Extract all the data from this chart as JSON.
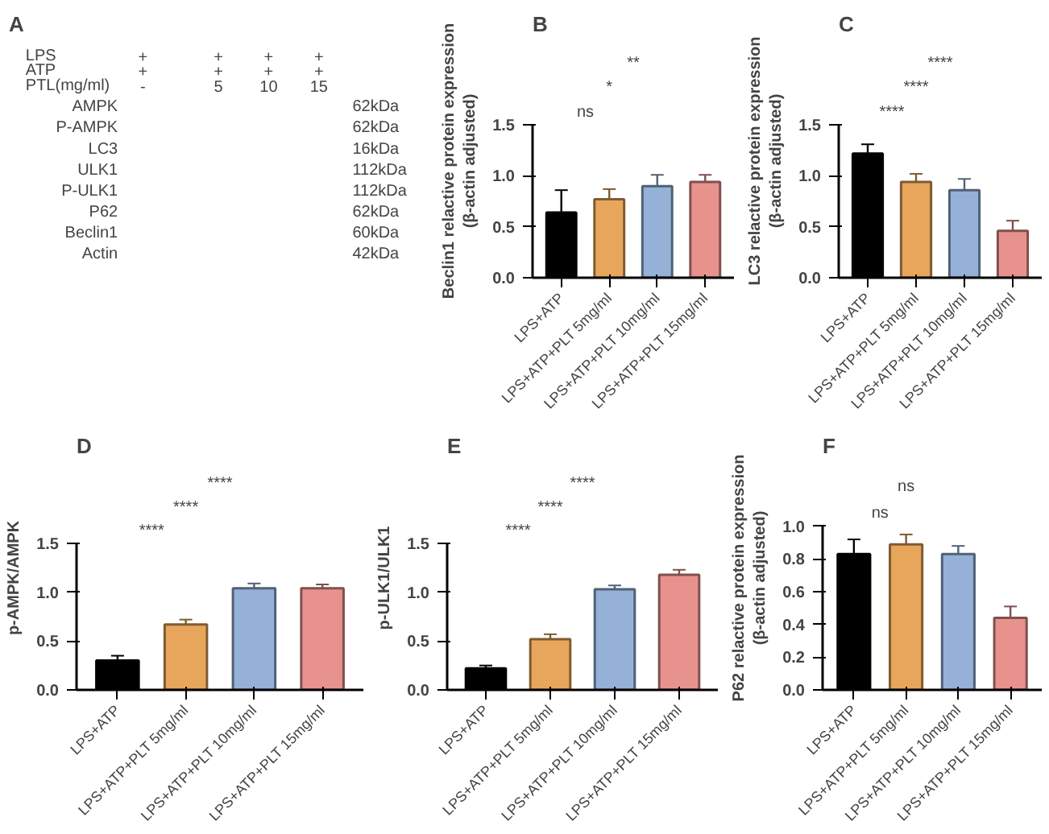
{
  "chart_data": [
    {
      "type": "other",
      "title": "A",
      "annotations": [
        "LPS",
        "+",
        "+",
        "+",
        "+",
        "ATP",
        "+",
        "+",
        "+",
        "+",
        "PTL(mg/ml)",
        "-",
        "5",
        "10",
        "15",
        "AMPK",
        "62kDa",
        "P-AMPK",
        "62kDa",
        "LC3",
        "16kDa",
        "ULK1",
        "112kDa",
        "P-ULK1",
        "112kDa",
        "P62",
        "62kDa",
        "Beclin1",
        "60kDa",
        "Actin",
        "42kDa"
      ]
    },
    {
      "type": "bar",
      "title": "B",
      "ylabel": "Beclin1 relactive protein expression\n(β-actin adjusted)",
      "categories": [
        "LPS+ATP",
        "LPS+ATP+PLT 5mg/ml",
        "LPS+ATP+PLT 10mg/ml",
        "LPS+ATP+PLT 15mg/ml"
      ],
      "values": [
        0.64,
        0.77,
        0.9,
        0.94
      ],
      "errors": [
        0.22,
        0.1,
        0.11,
        0.07
      ],
      "colors": [
        "#000000",
        "#e8a65c",
        "#95b1d8",
        "#e8928e"
      ],
      "ylim": [
        0,
        1.5
      ],
      "yticks": [
        {
          "value": 0,
          "label": "0.0"
        },
        {
          "value": 0.5,
          "label": "0.5"
        },
        {
          "value": 1,
          "label": "1.0"
        },
        {
          "value": 1.5,
          "label": "1.5"
        }
      ],
      "annotations": [
        "ns",
        "*",
        "**"
      ]
    },
    {
      "type": "bar",
      "title": "C",
      "ylabel": "LC3 relactive protein expression\n(β-actin adjusted)",
      "categories": [
        "LPS+ATP",
        "LPS+ATP+PLT 5mg/ml",
        "LPS+ATP+PLT 10mg/ml",
        "LPS+ATP+PLT 15mg/ml"
      ],
      "values": [
        1.22,
        0.94,
        0.86,
        0.46
      ],
      "errors": [
        0.09,
        0.08,
        0.11,
        0.1
      ],
      "colors": [
        "#000000",
        "#e8a65c",
        "#95b1d8",
        "#e8928e"
      ],
      "ylim": [
        0,
        1.5
      ],
      "yticks": [
        {
          "value": 0,
          "label": "0.0"
        },
        {
          "value": 0.5,
          "label": "0.5"
        },
        {
          "value": 1,
          "label": "1.0"
        },
        {
          "value": 1.5,
          "label": "1.5"
        }
      ],
      "annotations": [
        "****",
        "****",
        "****"
      ]
    },
    {
      "type": "bar",
      "title": "D",
      "ylabel": "p-AMPK/AMPK",
      "categories": [
        "LPS+ATP",
        "LPS+ATP+PLT 5mg/ml",
        "LPS+ATP+PLT 10mg/ml",
        "LPS+ATP+PLT 15mg/ml"
      ],
      "values": [
        0.3,
        0.67,
        1.04,
        1.04
      ],
      "errors": [
        0.05,
        0.05,
        0.05,
        0.04
      ],
      "colors": [
        "#000000",
        "#e8a65c",
        "#95b1d8",
        "#e8928e"
      ],
      "ylim": [
        0,
        1.5
      ],
      "yticks": [
        {
          "value": 0,
          "label": "0.0"
        },
        {
          "value": 0.5,
          "label": "0.5"
        },
        {
          "value": 1,
          "label": "1.0"
        },
        {
          "value": 1.5,
          "label": "1.5"
        }
      ],
      "annotations": [
        "****",
        "****",
        "****"
      ]
    },
    {
      "type": "bar",
      "title": "E",
      "ylabel": "p-ULK1/ULK1",
      "categories": [
        "LPS+ATP",
        "LPS+ATP+PLT 5mg/ml",
        "LPS+ATP+PLT 10mg/ml",
        "LPS+ATP+PLT 15mg/ml"
      ],
      "values": [
        0.22,
        0.52,
        1.03,
        1.18
      ],
      "errors": [
        0.03,
        0.05,
        0.04,
        0.05
      ],
      "colors": [
        "#000000",
        "#e8a65c",
        "#95b1d8",
        "#e8928e"
      ],
      "ylim": [
        0,
        1.5
      ],
      "yticks": [
        {
          "value": 0,
          "label": "0.0"
        },
        {
          "value": 0.5,
          "label": "0.5"
        },
        {
          "value": 1,
          "label": "1.0"
        },
        {
          "value": 1.5,
          "label": "1.5"
        }
      ],
      "annotations": [
        "****",
        "****",
        "****"
      ]
    },
    {
      "type": "bar",
      "title": "F",
      "ylabel": "P62 relactive protein expression\n(β-actin adjusted)",
      "categories": [
        "LPS+ATP",
        "LPS+ATP+PLT 5mg/ml",
        "LPS+ATP+PLT 10mg/ml",
        "LPS+ATP+PLT 15mg/ml"
      ],
      "values": [
        0.83,
        0.89,
        0.83,
        0.44
      ],
      "errors": [
        0.09,
        0.06,
        0.05,
        0.07
      ],
      "colors": [
        "#000000",
        "#e8a65c",
        "#95b1d8",
        "#e8928e"
      ],
      "ylim": [
        0,
        1.0
      ],
      "yticks": [
        {
          "value": 0,
          "label": "0.0"
        },
        {
          "value": 0.2,
          "label": "0.2"
        },
        {
          "value": 0.4,
          "label": "0.4"
        },
        {
          "value": 0.6,
          "label": "0.6"
        },
        {
          "value": 0.8,
          "label": "0.8"
        },
        {
          "value": 1.0,
          "label": "1.0"
        }
      ],
      "annotations": [
        "ns",
        "ns"
      ]
    }
  ]
}
